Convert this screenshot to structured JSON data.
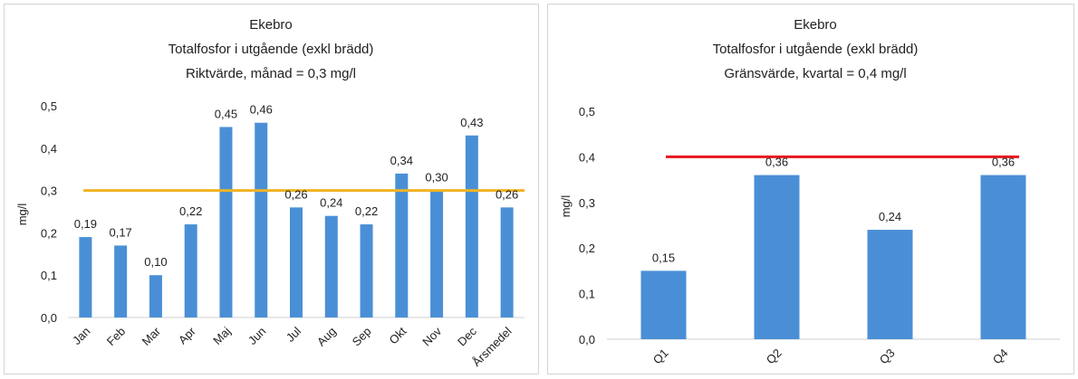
{
  "chart_data": [
    {
      "type": "bar",
      "title": [
        "Ekebro",
        "Totalfosfor i utgående (exkl brädd)",
        "Riktvärde, månad = 0,3 mg/l"
      ],
      "ylabel": "mg/l",
      "xlabel": "",
      "ylim": [
        0,
        0.5
      ],
      "yticks": [
        "0,0",
        "0,1",
        "0,2",
        "0,3",
        "0,4",
        "0,5"
      ],
      "categories": [
        "Jan",
        "Feb",
        "Mar",
        "Apr",
        "Maj",
        "Jun",
        "Jul",
        "Aug",
        "Sep",
        "Okt",
        "Nov",
        "Dec",
        "Årsmedel"
      ],
      "values": [
        0.19,
        0.17,
        0.1,
        0.22,
        0.45,
        0.46,
        0.26,
        0.24,
        0.22,
        0.34,
        0.3,
        0.43,
        0.26
      ],
      "value_labels": [
        "0,19",
        "0,17",
        "0,10",
        "0,22",
        "0,45",
        "0,46",
        "0,26",
        "0,24",
        "0,22",
        "0,34",
        "0,30",
        "0,43",
        "0,26"
      ],
      "reference_line": {
        "value": 0.3,
        "color": "#f0b323"
      },
      "bar_color": "#4a8fd6",
      "grid": false,
      "legend": "none"
    },
    {
      "type": "bar",
      "title": [
        "Ekebro",
        "Totalfosfor i utgående (exkl brädd)",
        "Gränsvärde, kvartal = 0,4 mg/l"
      ],
      "ylabel": "mg/l",
      "xlabel": "",
      "ylim": [
        0,
        0.5
      ],
      "yticks": [
        "0,0",
        "0,1",
        "0,2",
        "0,3",
        "0,4",
        "0,5"
      ],
      "categories": [
        "Q1",
        "Q2",
        "Q3",
        "Q4"
      ],
      "values": [
        0.15,
        0.36,
        0.24,
        0.36
      ],
      "value_labels": [
        "0,15",
        "0,36",
        "0,24",
        "0,36"
      ],
      "reference_line": {
        "value": 0.4,
        "color": "#e8161d"
      },
      "bar_color": "#4a8fd6",
      "grid": false,
      "legend": "none"
    }
  ]
}
